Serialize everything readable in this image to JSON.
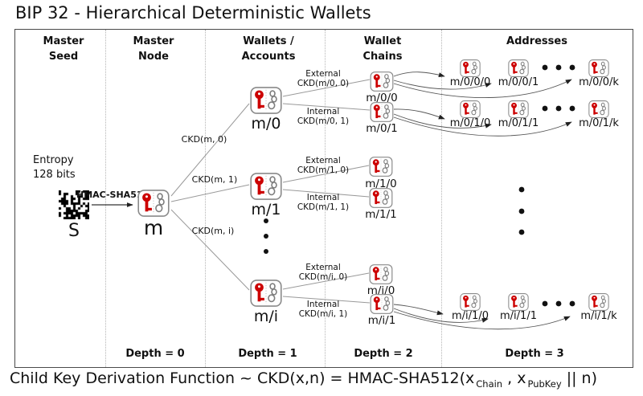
{
  "title": "BIP 32 - Hierarchical Deterministic Wallets",
  "columns": [
    "Master\nSeed",
    "Master\nNode",
    "Wallets /\nAccounts",
    "Wallet\nChains",
    "Addresses"
  ],
  "seed": {
    "entropy": "Entropy\n128 bits",
    "label": "S",
    "hash_label": "HMAC-SHA512"
  },
  "master": {
    "label": "m"
  },
  "accounts": [
    {
      "label": "m/0"
    },
    {
      "label": "m/1"
    },
    {
      "label": "m/i"
    }
  ],
  "master_edges": [
    "CKD(m, 0)",
    "CKD(m, 1)",
    "CKD(m, i)"
  ],
  "chain_edges": [
    {
      "type": "External",
      "fn": "CKD(m/0, 0)"
    },
    {
      "type": "Internal",
      "fn": "CKD(m/0, 1)"
    },
    {
      "type": "External",
      "fn": "CKD(m/1, 0)"
    },
    {
      "type": "Internal",
      "fn": "CKD(m/1, 1)"
    },
    {
      "type": "External",
      "fn": "CKD(m/i, 0)"
    },
    {
      "type": "Internal",
      "fn": "CKD(m/i, 1)"
    }
  ],
  "chains": [
    {
      "label": "m/0/0"
    },
    {
      "label": "m/0/1"
    },
    {
      "label": "m/1/0"
    },
    {
      "label": "m/1/1"
    },
    {
      "label": "m/i/0"
    },
    {
      "label": "m/i/1"
    }
  ],
  "address_rows": [
    {
      "items": [
        "m/0/0/0",
        "m/0/0/1",
        "m/0/0/k"
      ]
    },
    {
      "items": [
        "m/0/1/0",
        "m/0/1/1",
        "m/0/1/k"
      ]
    },
    {
      "items": [
        "m/i/1/0",
        "m/i/1/1",
        "m/i/1/k"
      ]
    }
  ],
  "depths": [
    "Depth = 0",
    "Depth = 1",
    "Depth = 2",
    "Depth = 3"
  ],
  "formula": {
    "prefix": "Child Key Derivation Function ~  CKD(x,n) = HMAC-SHA512(x",
    "sub1": "Chain",
    "mid": " , x",
    "sub2": "PubKey",
    "suffix": " || n)"
  },
  "colors": {
    "key_red": "#cc0000",
    "chain_gray": "#7e7e7e",
    "line_gray": "#999999"
  }
}
